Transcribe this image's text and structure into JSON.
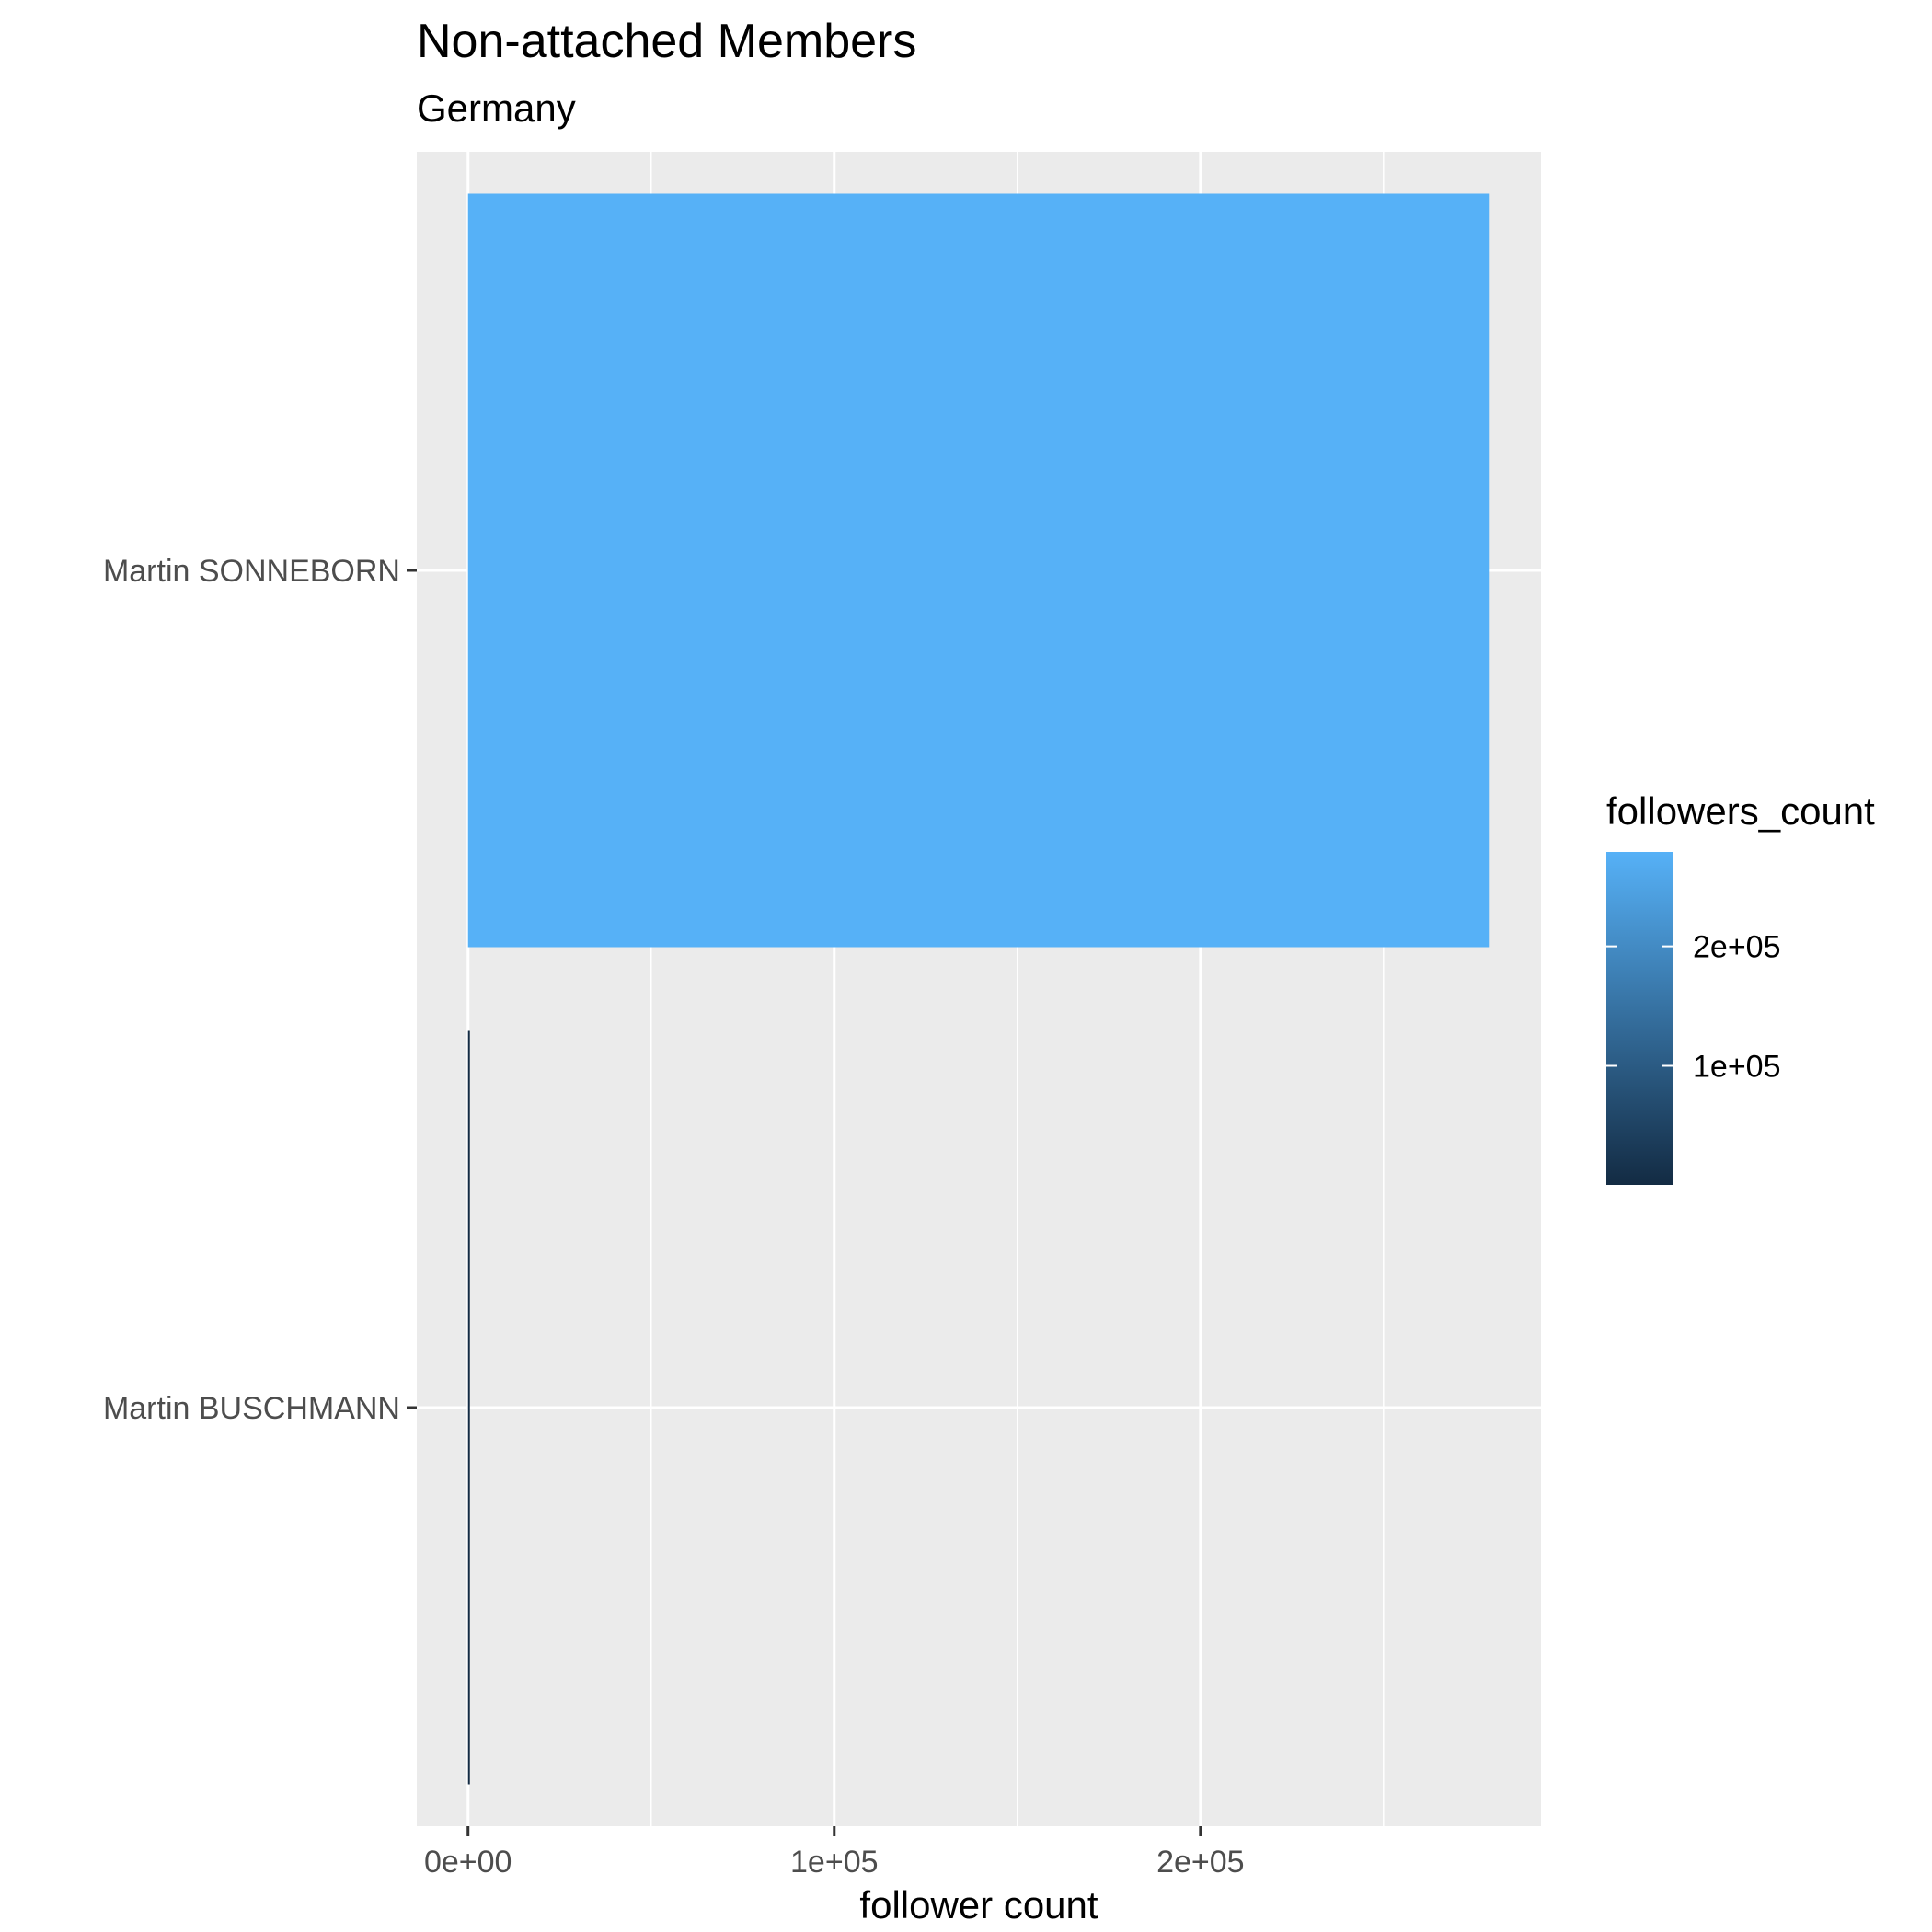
{
  "chart_data": {
    "type": "bar",
    "orientation": "horizontal",
    "title": "Non-attached Members",
    "subtitle": "Germany",
    "xlabel": "follower count",
    "ylabel": "",
    "categories": [
      "Martin SONNEBORN",
      "Martin BUSCHMANN"
    ],
    "values": [
      279000,
      300
    ],
    "xlim": [
      -14000,
      293000
    ],
    "x_ticks": [
      0,
      100000,
      200000
    ],
    "x_tick_labels": [
      "0e+00",
      "1e+05",
      "2e+05"
    ],
    "grid": true,
    "legend": {
      "title": "followers_count",
      "placement": "right",
      "type": "colorbar",
      "range": [
        300,
        279000
      ],
      "ticks": [
        100000,
        200000
      ],
      "tick_labels": [
        "1e+05",
        "2e+05"
      ],
      "color_low": "#132b43",
      "color_high": "#56b1f7"
    },
    "colors": {
      "panel_background": "#ebebeb",
      "grid": "#ffffff"
    }
  }
}
